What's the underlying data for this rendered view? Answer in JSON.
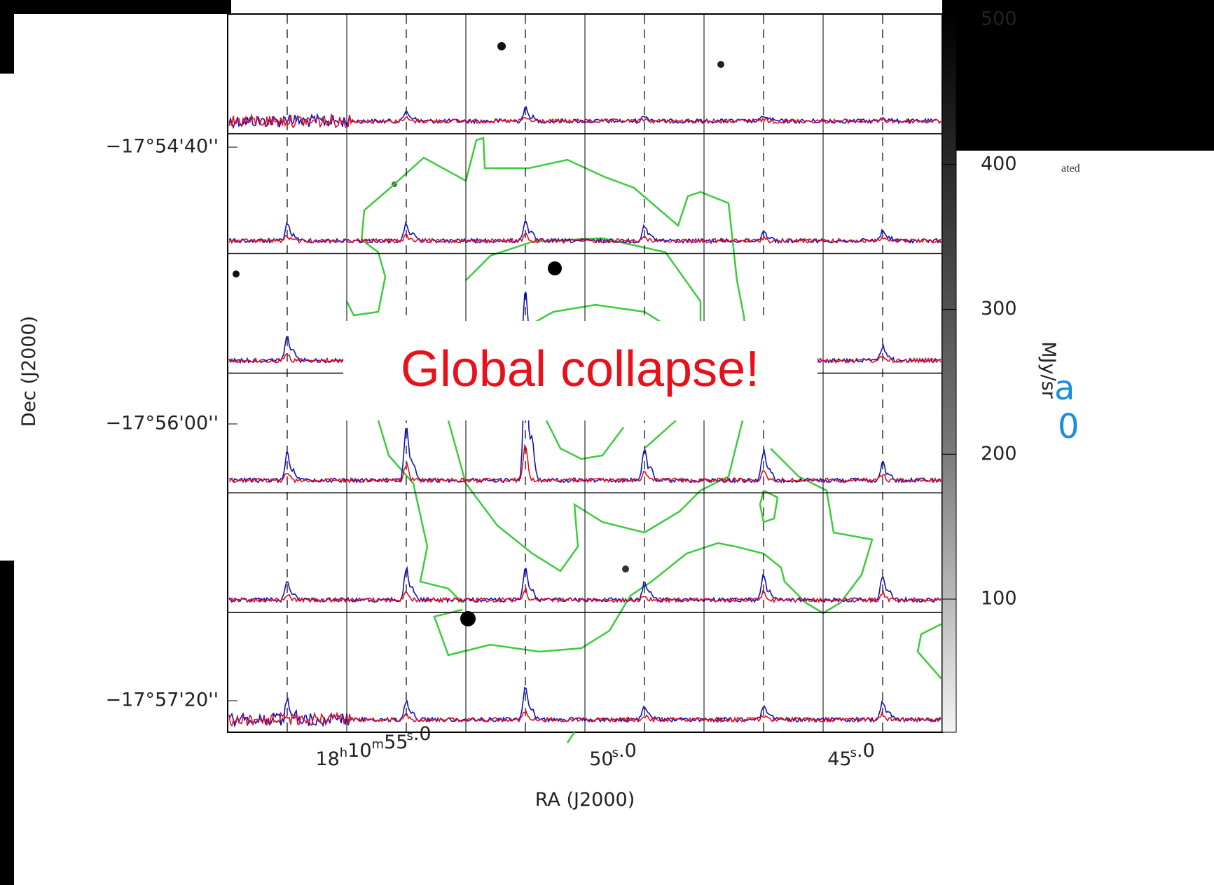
{
  "figure": {
    "dec_ticks": [
      "−17°54'40''",
      "−17°56'00''",
      "−17°57'20''"
    ],
    "ra_ticks": [
      [
        {
          "t": "18",
          "sup": "h"
        },
        {
          "t": "10",
          "sup": "m"
        },
        {
          "t": "55",
          "sup": "s"
        },
        {
          "t": ".0"
        }
      ],
      [
        {
          "t": "50",
          "sup": "s"
        },
        {
          "t": ".0"
        }
      ],
      [
        {
          "t": "45",
          "sup": "s"
        },
        {
          "t": ".0"
        }
      ]
    ],
    "x_label": "RA (J2000)",
    "y_label": "Dec (J2000)",
    "colorbar": {
      "label": "MJy/sr",
      "ticks": [
        500,
        400,
        300,
        200,
        100
      ]
    },
    "annotation": "Global collapse!"
  },
  "background_fragments": {
    "small_text": "ated",
    "blue_1": "a",
    "blue_2": "0"
  }
}
